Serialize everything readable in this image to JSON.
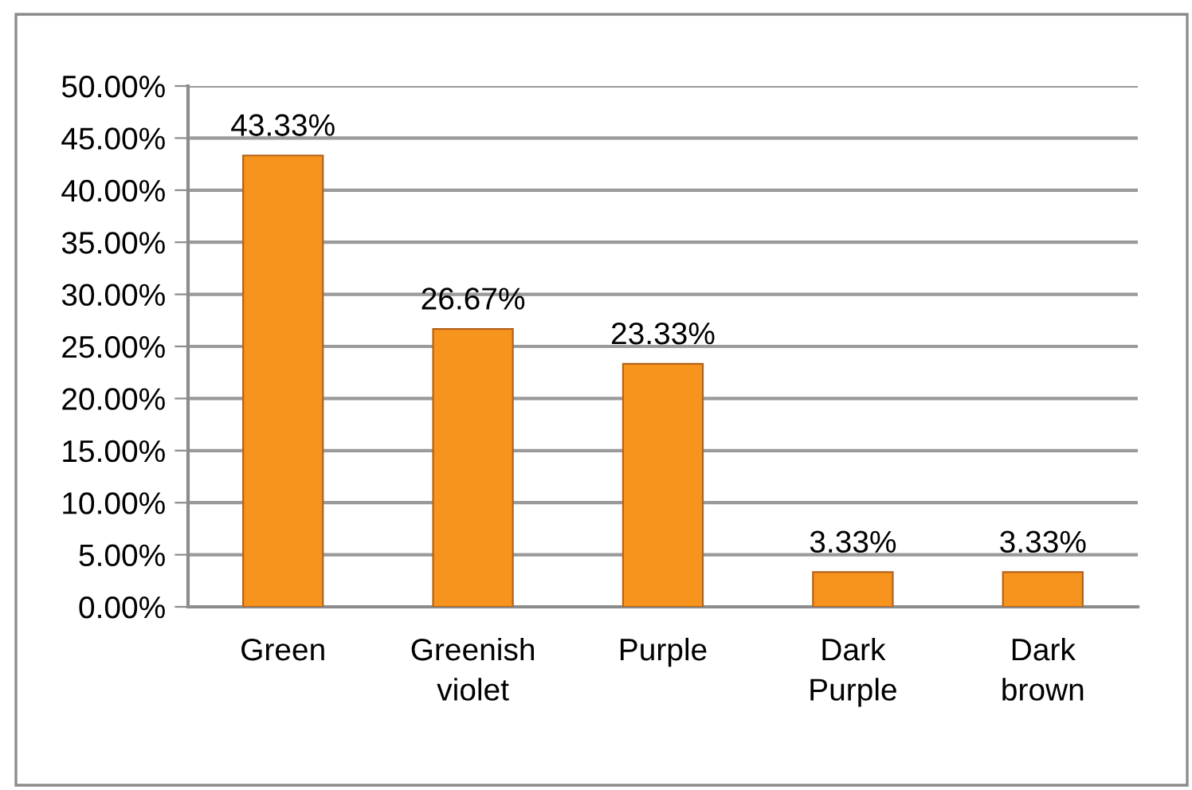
{
  "chart_data": {
    "type": "bar",
    "categories": [
      "Green",
      "Greenish violet",
      "Purple",
      "Dark Purple",
      "Dark brown"
    ],
    "values": [
      43.33,
      26.67,
      23.33,
      3.33,
      3.33
    ],
    "value_labels": [
      "43.33%",
      "26.67%",
      "23.33%",
      "3.33%",
      "3.33%"
    ],
    "color": "#f7941e",
    "ylim": [
      0,
      50
    ],
    "yticks": [
      {
        "value": 0,
        "label": "0.00%"
      },
      {
        "value": 5,
        "label": "5.00%"
      },
      {
        "value": 10,
        "label": "10.00%"
      },
      {
        "value": 15,
        "label": "15.00%"
      },
      {
        "value": 20,
        "label": "20.00%"
      },
      {
        "value": 25,
        "label": "25.00%"
      },
      {
        "value": 30,
        "label": "30.00%"
      },
      {
        "value": 35,
        "label": "35.00%"
      },
      {
        "value": 40,
        "label": "40.00%"
      },
      {
        "value": 45,
        "label": "45.00%"
      },
      {
        "value": 50,
        "label": "50.00%"
      }
    ],
    "grid": "y",
    "legend": false
  }
}
